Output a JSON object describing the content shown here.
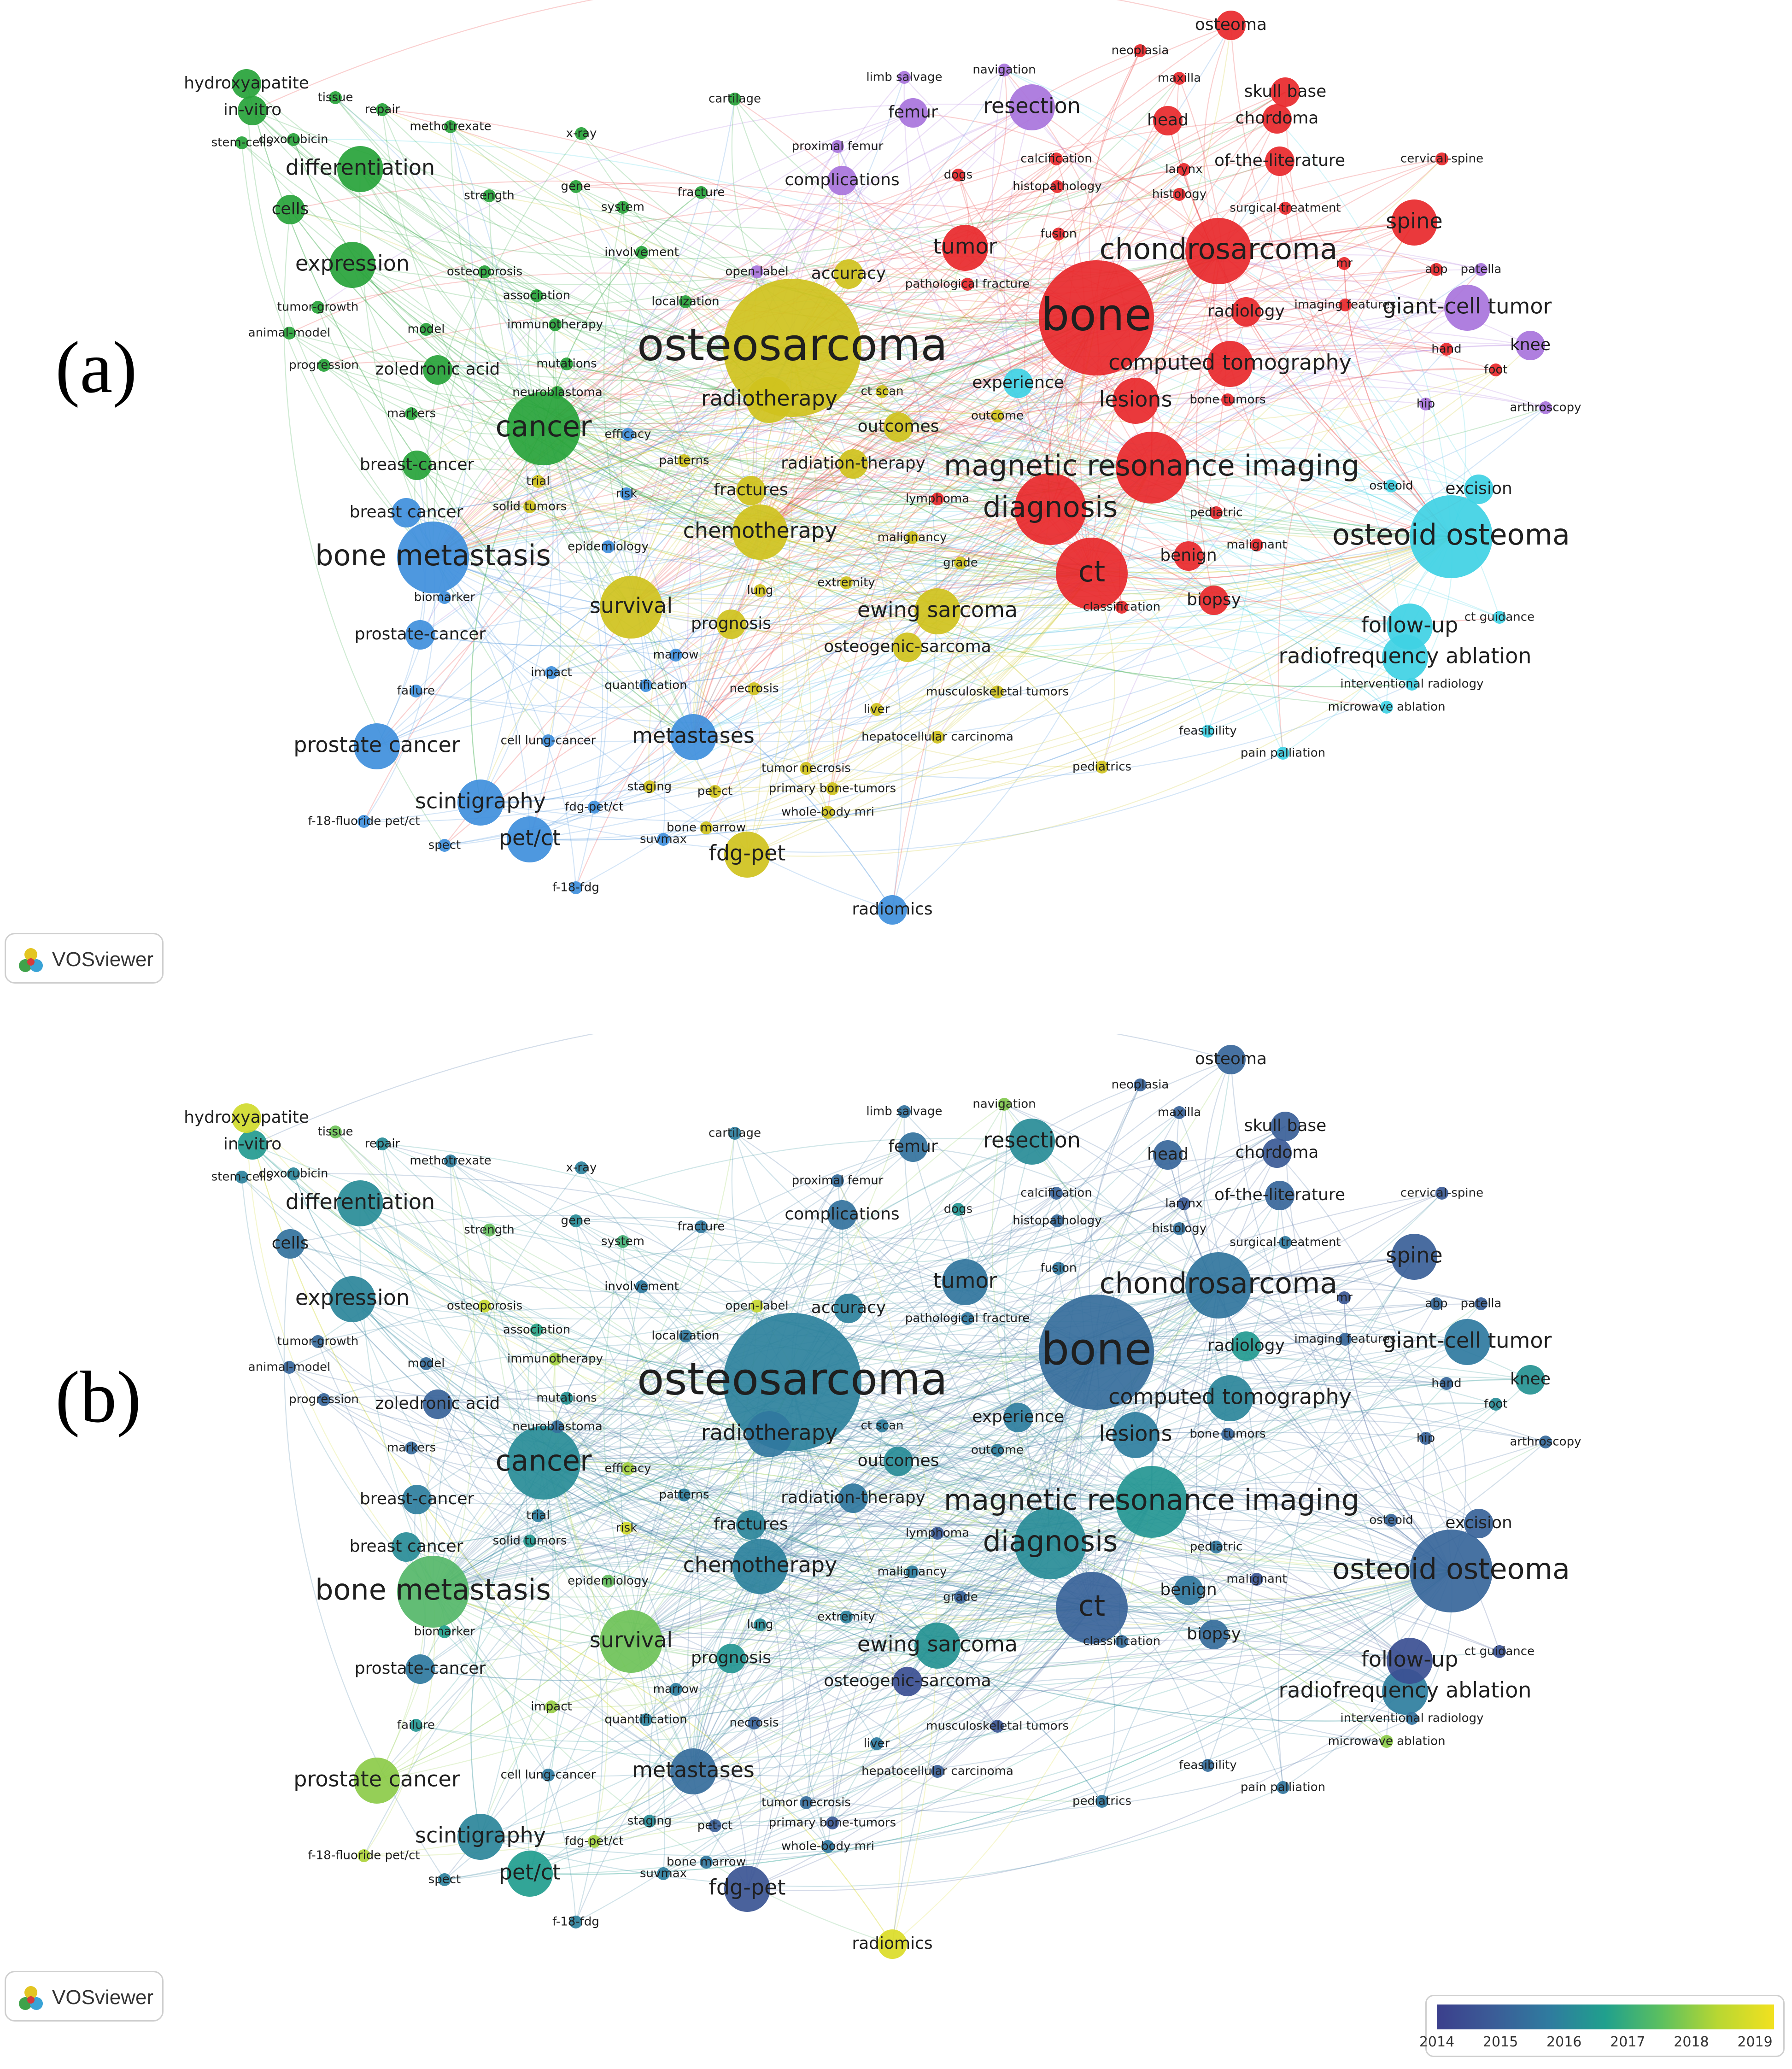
{
  "panels": [
    {
      "id": "a",
      "label": "(a)"
    },
    {
      "id": "b",
      "label": "(b)"
    }
  ],
  "badge_text": "VOSviewer",
  "legend": {
    "ticks": [
      "2014",
      "2015",
      "2016",
      "2017",
      "2018",
      "2019"
    ],
    "range": [
      2014,
      2019.3
    ]
  },
  "cluster_colors": {
    "red": "#e8282b",
    "green": "#27a33a",
    "blue": "#3f8fdc",
    "yellow": "#cfc21d",
    "purple": "#a874dc",
    "cyan": "#3fd1e4"
  },
  "keywords": [
    {
      "term": "osteosarcoma",
      "cluster": "yellow",
      "year": 2016.3,
      "size": "xl"
    },
    {
      "term": "bone",
      "cluster": "red",
      "year": 2015.6,
      "size": "xl"
    },
    {
      "term": "chondrosarcoma",
      "cluster": "red",
      "year": 2015.9,
      "size": "l"
    },
    {
      "term": "bone metastasis",
      "cluster": "blue",
      "year": 2017.8,
      "size": "l"
    },
    {
      "term": "cancer",
      "cluster": "green",
      "year": 2016.6,
      "size": "l"
    },
    {
      "term": "magnetic resonance imaging",
      "cluster": "red",
      "year": 2016.9,
      "size": "l"
    },
    {
      "term": "diagnosis",
      "cluster": "red",
      "year": 2016.6,
      "size": "l"
    },
    {
      "term": "ct",
      "cluster": "red",
      "year": 2015.3,
      "size": "l"
    },
    {
      "term": "osteoid osteoma",
      "cluster": "cyan",
      "year": 2015.4,
      "size": "l"
    },
    {
      "term": "computed tomography",
      "cluster": "red",
      "year": 2016.4,
      "size": "m"
    },
    {
      "term": "lesions",
      "cluster": "red",
      "year": 2016.2,
      "size": "m"
    },
    {
      "term": "tumor",
      "cluster": "red",
      "year": 2015.9,
      "size": "m"
    },
    {
      "term": "spine",
      "cluster": "red",
      "year": 2015.2,
      "size": "m"
    },
    {
      "term": "chemotherapy",
      "cluster": "yellow",
      "year": 2016.3,
      "size": "m"
    },
    {
      "term": "survival",
      "cluster": "yellow",
      "year": 2018.1,
      "size": "m"
    },
    {
      "term": "ewing sarcoma",
      "cluster": "yellow",
      "year": 2016.8,
      "size": "m"
    },
    {
      "term": "metastases",
      "cluster": "blue",
      "year": 2015.6,
      "size": "m"
    },
    {
      "term": "prostate cancer",
      "cluster": "blue",
      "year": 2018.4,
      "size": "m"
    },
    {
      "term": "radiotherapy",
      "cluster": "yellow",
      "year": 2016.0,
      "size": "m"
    },
    {
      "term": "radiofrequency ablation",
      "cluster": "cyan",
      "year": 2016.2,
      "size": "m"
    },
    {
      "term": "expression",
      "cluster": "green",
      "year": 2016.4,
      "size": "m"
    },
    {
      "term": "differentiation",
      "cluster": "green",
      "year": 2016.6,
      "size": "m"
    },
    {
      "term": "resection",
      "cluster": "purple",
      "year": 2016.6,
      "size": "m"
    },
    {
      "term": "giant-cell tumor",
      "cluster": "purple",
      "year": 2016.1,
      "size": "m"
    },
    {
      "term": "follow-up",
      "cluster": "cyan",
      "year": 2014.6,
      "size": "m"
    },
    {
      "term": "scintigraphy",
      "cluster": "blue",
      "year": 2016.4,
      "size": "m"
    },
    {
      "term": "pet/ct",
      "cluster": "blue",
      "year": 2017.1,
      "size": "m"
    },
    {
      "term": "fdg-pet",
      "cluster": "yellow",
      "year": 2014.8,
      "size": "m"
    },
    {
      "term": "breast-cancer",
      "cluster": "green",
      "year": 2016.2,
      "size": "s"
    },
    {
      "term": "breast cancer",
      "cluster": "blue",
      "year": 2016.6,
      "size": "s"
    },
    {
      "term": "prostate-cancer",
      "cluster": "blue",
      "year": 2016.1,
      "size": "s"
    },
    {
      "term": "osteogenic-sarcoma",
      "cluster": "yellow",
      "year": 2014.6,
      "size": "s"
    },
    {
      "term": "benign",
      "cluster": "red",
      "year": 2016.0,
      "size": "s"
    },
    {
      "term": "biopsy",
      "cluster": "red",
      "year": 2015.6,
      "size": "s"
    },
    {
      "term": "knee",
      "cluster": "purple",
      "year": 2016.8,
      "size": "s"
    },
    {
      "term": "osteoma",
      "cluster": "red",
      "year": 2015.4,
      "size": "s"
    },
    {
      "term": "experience",
      "cluster": "cyan",
      "year": 2016.2,
      "size": "s"
    },
    {
      "term": "cells",
      "cluster": "green",
      "year": 2015.8,
      "size": "s"
    },
    {
      "term": "in-vitro",
      "cluster": "green",
      "year": 2017.0,
      "size": "s"
    },
    {
      "term": "hydroxyapatite",
      "cluster": "green",
      "year": 2019.0,
      "size": "s"
    },
    {
      "term": "radiomics",
      "cluster": "blue",
      "year": 2019.1,
      "size": "s"
    },
    {
      "term": "excision",
      "cluster": "cyan",
      "year": 2015.3,
      "size": "s"
    },
    {
      "term": "head",
      "cluster": "red",
      "year": 2015.4,
      "size": "s"
    },
    {
      "term": "skull base",
      "cluster": "red",
      "year": 2015.2,
      "size": "s"
    },
    {
      "term": "chordoma",
      "cluster": "red",
      "year": 2015.0,
      "size": "s"
    },
    {
      "term": "of-the-literature",
      "cluster": "red",
      "year": 2015.4,
      "size": "s"
    },
    {
      "term": "accuracy",
      "cluster": "yellow",
      "year": 2016.3,
      "size": "s"
    },
    {
      "term": "complications",
      "cluster": "purple",
      "year": 2015.8,
      "size": "s"
    },
    {
      "term": "outcomes",
      "cluster": "yellow",
      "year": 2016.6,
      "size": "s"
    },
    {
      "term": "radiation-therapy",
      "cluster": "yellow",
      "year": 2016.0,
      "size": "s"
    },
    {
      "term": "fractures",
      "cluster": "yellow",
      "year": 2016.4,
      "size": "s"
    },
    {
      "term": "prognosis",
      "cluster": "yellow",
      "year": 2016.9,
      "size": "s"
    },
    {
      "term": "zoledronic acid",
      "cluster": "green",
      "year": 2015.3,
      "size": "s"
    },
    {
      "term": "radiology",
      "cluster": "red",
      "year": 2017.0,
      "size": "s"
    },
    {
      "term": "femur",
      "cluster": "purple",
      "year": 2015.8,
      "size": "s"
    },
    {
      "term": "navigation",
      "cluster": "purple",
      "year": 2018.3,
      "size": "xs"
    },
    {
      "term": "model",
      "cluster": "green",
      "year": 2015.6,
      "size": "xs"
    },
    {
      "term": "progression",
      "cluster": "green",
      "year": 2015.4,
      "size": "xs"
    },
    {
      "term": "tumor-growth",
      "cluster": "green",
      "year": 2015.5,
      "size": "xs"
    },
    {
      "term": "animal-model",
      "cluster": "green",
      "year": 2015.4,
      "size": "xs"
    },
    {
      "term": "osteoporosis",
      "cluster": "green",
      "year": 2018.9,
      "size": "xs"
    },
    {
      "term": "association",
      "cluster": "green",
      "year": 2017.3,
      "size": "xs"
    },
    {
      "term": "immunotherapy",
      "cluster": "green",
      "year": 2018.6,
      "size": "xs"
    },
    {
      "term": "mutations",
      "cluster": "green",
      "year": 2016.8,
      "size": "xs"
    },
    {
      "term": "neuroblastoma",
      "cluster": "green",
      "year": 2015.7,
      "size": "xs"
    },
    {
      "term": "markers",
      "cluster": "green",
      "year": 2015.5,
      "size": "xs"
    },
    {
      "term": "efficacy",
      "cluster": "blue",
      "year": 2018.6,
      "size": "xs"
    },
    {
      "term": "patterns",
      "cluster": "yellow",
      "year": 2016.2,
      "size": "xs"
    },
    {
      "term": "trial",
      "cluster": "yellow",
      "year": 2016.2,
      "size": "xs"
    },
    {
      "term": "solid tumors",
      "cluster": "yellow",
      "year": 2017.0,
      "size": "xs"
    },
    {
      "term": "risk",
      "cluster": "blue",
      "year": 2019.0,
      "size": "xs"
    },
    {
      "term": "epidemiology",
      "cluster": "blue",
      "year": 2018.0,
      "size": "xs"
    },
    {
      "term": "biomarker",
      "cluster": "blue",
      "year": 2017.2,
      "size": "xs"
    },
    {
      "term": "impact",
      "cluster": "blue",
      "year": 2018.5,
      "size": "xs"
    },
    {
      "term": "failure",
      "cluster": "blue",
      "year": 2016.9,
      "size": "xs"
    },
    {
      "term": "cell lung-cancer",
      "cluster": "blue",
      "year": 2016.1,
      "size": "xs"
    },
    {
      "term": "f-18-fluoride pet/ct",
      "cluster": "blue",
      "year": 2018.7,
      "size": "xs"
    },
    {
      "term": "spect",
      "cluster": "blue",
      "year": 2016.3,
      "size": "xs"
    },
    {
      "term": "f-18-fdg",
      "cluster": "blue",
      "year": 2016.3,
      "size": "xs"
    },
    {
      "term": "fdg-pet/ct",
      "cluster": "blue",
      "year": 2018.6,
      "size": "xs"
    },
    {
      "term": "suvmax",
      "cluster": "blue",
      "year": 2016.2,
      "size": "xs"
    },
    {
      "term": "bone marrow",
      "cluster": "yellow",
      "year": 2016.0,
      "size": "xs"
    },
    {
      "term": "staging",
      "cluster": "yellow",
      "year": 2016.6,
      "size": "xs"
    },
    {
      "term": "pet-ct",
      "cluster": "yellow",
      "year": 2015.2,
      "size": "xs"
    },
    {
      "term": "whole-body mri",
      "cluster": "yellow",
      "year": 2016.0,
      "size": "xs"
    },
    {
      "term": "primary bone-tumors",
      "cluster": "yellow",
      "year": 2014.9,
      "size": "xs"
    },
    {
      "term": "tumor necrosis",
      "cluster": "yellow",
      "year": 2015.6,
      "size": "xs"
    },
    {
      "term": "pediatrics",
      "cluster": "yellow",
      "year": 2016.0,
      "size": "xs"
    },
    {
      "term": "hepatocellular carcinoma",
      "cluster": "yellow",
      "year": 2015.2,
      "size": "xs"
    },
    {
      "term": "liver",
      "cluster": "yellow",
      "year": 2016.1,
      "size": "xs"
    },
    {
      "term": "musculoskeletal tumors",
      "cluster": "yellow",
      "year": 2014.8,
      "size": "xs"
    },
    {
      "term": "necrosis",
      "cluster": "yellow",
      "year": 2015.3,
      "size": "xs"
    },
    {
      "term": "quantification",
      "cluster": "blue",
      "year": 2016.3,
      "size": "xs"
    },
    {
      "term": "marrow",
      "cluster": "blue",
      "year": 2016.2,
      "size": "xs"
    },
    {
      "term": "lung",
      "cluster": "yellow",
      "year": 2016.6,
      "size": "xs"
    },
    {
      "term": "extremity",
      "cluster": "yellow",
      "year": 2016.3,
      "size": "xs"
    },
    {
      "term": "malignancy",
      "cluster": "yellow",
      "year": 2016.2,
      "size": "xs"
    },
    {
      "term": "grade",
      "cluster": "yellow",
      "year": 2015.3,
      "size": "xs"
    },
    {
      "term": "lymphoma",
      "cluster": "red",
      "year": 2015.0,
      "size": "xs"
    },
    {
      "term": "classification",
      "cluster": "red",
      "year": 2015.6,
      "size": "xs"
    },
    {
      "term": "malignant",
      "cluster": "red",
      "year": 2014.8,
      "size": "xs"
    },
    {
      "term": "pediatric",
      "cluster": "red",
      "year": 2016.0,
      "size": "xs"
    },
    {
      "term": "osteoid",
      "cluster": "cyan",
      "year": 2015.4,
      "size": "xs"
    },
    {
      "term": "ct guidance",
      "cluster": "cyan",
      "year": 2014.7,
      "size": "xs"
    },
    {
      "term": "interventional radiology",
      "cluster": "cyan",
      "year": 2015.8,
      "size": "xs"
    },
    {
      "term": "microwave ablation",
      "cluster": "cyan",
      "year": 2018.4,
      "size": "xs"
    },
    {
      "term": "feasibility",
      "cluster": "cyan",
      "year": 2015.6,
      "size": "xs"
    },
    {
      "term": "pain palliation",
      "cluster": "cyan",
      "year": 2015.9,
      "size": "xs"
    },
    {
      "term": "arthroscopy",
      "cluster": "purple",
      "year": 2015.5,
      "size": "xs"
    },
    {
      "term": "hip",
      "cluster": "purple",
      "year": 2015.3,
      "size": "xs"
    },
    {
      "term": "foot",
      "cluster": "red",
      "year": 2016.6,
      "size": "xs"
    },
    {
      "term": "hand",
      "cluster": "red",
      "year": 2015.4,
      "size": "xs"
    },
    {
      "term": "patella",
      "cluster": "purple",
      "year": 2015.2,
      "size": "xs"
    },
    {
      "term": "abp",
      "cluster": "red",
      "year": 2015.5,
      "size": "xs"
    },
    {
      "term": "mr",
      "cluster": "red",
      "year": 2014.9,
      "size": "xs"
    },
    {
      "term": "imaging features",
      "cluster": "red",
      "year": 2015.4,
      "size": "xs"
    },
    {
      "term": "surgical-treatment",
      "cluster": "red",
      "year": 2016.1,
      "size": "xs"
    },
    {
      "term": "histology",
      "cluster": "red",
      "year": 2015.8,
      "size": "xs"
    },
    {
      "term": "cervical-spine",
      "cluster": "red",
      "year": 2015.0,
      "size": "xs"
    },
    {
      "term": "larynx",
      "cluster": "red",
      "year": 2015.0,
      "size": "xs"
    },
    {
      "term": "maxilla",
      "cluster": "red",
      "year": 2015.3,
      "size": "xs"
    },
    {
      "term": "neoplasia",
      "cluster": "red",
      "year": 2015.3,
      "size": "xs"
    },
    {
      "term": "limb salvage",
      "cluster": "purple",
      "year": 2015.8,
      "size": "xs"
    },
    {
      "term": "proximal femur",
      "cluster": "purple",
      "year": 2015.6,
      "size": "xs"
    },
    {
      "term": "calcification",
      "cluster": "red",
      "year": 2015.3,
      "size": "xs"
    },
    {
      "term": "histopathology",
      "cluster": "red",
      "year": 2015.5,
      "size": "xs"
    },
    {
      "term": "fusion",
      "cluster": "red",
      "year": 2016.0,
      "size": "xs"
    },
    {
      "term": "dogs",
      "cluster": "red",
      "year": 2016.9,
      "size": "xs"
    },
    {
      "term": "pathological fracture",
      "cluster": "red",
      "year": 2016.0,
      "size": "xs"
    },
    {
      "term": "fracture",
      "cluster": "green",
      "year": 2016.0,
      "size": "xs"
    },
    {
      "term": "system",
      "cluster": "green",
      "year": 2017.6,
      "size": "xs"
    },
    {
      "term": "gene",
      "cluster": "green",
      "year": 2016.6,
      "size": "xs"
    },
    {
      "term": "x-ray",
      "cluster": "green",
      "year": 2016.3,
      "size": "xs"
    },
    {
      "term": "cartilage",
      "cluster": "green",
      "year": 2016.2,
      "size": "xs"
    },
    {
      "term": "involvement",
      "cluster": "green",
      "year": 2016.1,
      "size": "xs"
    },
    {
      "term": "localization",
      "cluster": "green",
      "year": 2016.0,
      "size": "xs"
    },
    {
      "term": "open-label",
      "cluster": "purple",
      "year": 2018.9,
      "size": "xs"
    },
    {
      "term": "ct scan",
      "cluster": "yellow",
      "year": 2016.2,
      "size": "xs"
    },
    {
      "term": "outcome",
      "cluster": "yellow",
      "year": 2016.2,
      "size": "xs"
    },
    {
      "term": "strength",
      "cluster": "green",
      "year": 2018.0,
      "size": "xs"
    },
    {
      "term": "methotrexate",
      "cluster": "green",
      "year": 2016.2,
      "size": "xs"
    },
    {
      "term": "repair",
      "cluster": "green",
      "year": 2016.6,
      "size": "xs"
    },
    {
      "term": "tissue",
      "cluster": "green",
      "year": 2018.1,
      "size": "xs"
    },
    {
      "term": "doxorubicin",
      "cluster": "green",
      "year": 2016.4,
      "size": "xs"
    },
    {
      "term": "stem-cells",
      "cluster": "green",
      "year": 2016.3,
      "size": "xs"
    },
    {
      "term": "bone tumors",
      "cluster": "red",
      "year": 2015.4,
      "size": "xs"
    }
  ]
}
